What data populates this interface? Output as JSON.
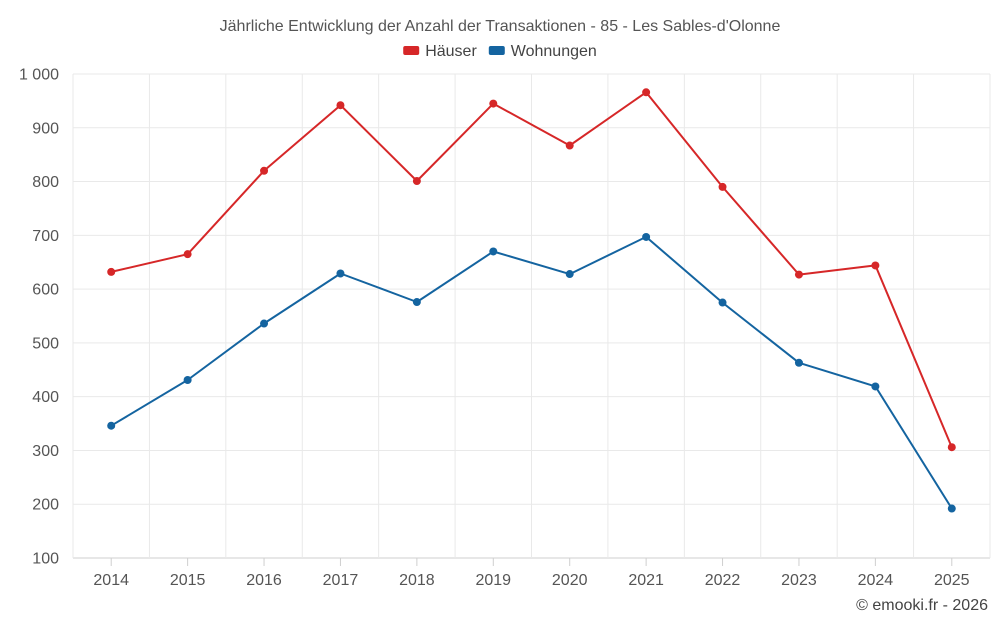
{
  "chart_data": {
    "type": "line",
    "title": "Jährliche Entwicklung der Anzahl der Transaktionen - 85 - Les Sables-d'Olonne",
    "categories": [
      "2014",
      "2015",
      "2016",
      "2017",
      "2018",
      "2019",
      "2020",
      "2021",
      "2022",
      "2023",
      "2024",
      "2025"
    ],
    "series": [
      {
        "name": "Häuser",
        "color": "#d62728",
        "values": [
          632,
          665,
          820,
          942,
          801,
          945,
          867,
          966,
          790,
          627,
          644,
          306
        ]
      },
      {
        "name": "Wohnungen",
        "color": "#1464a0",
        "values": [
          346,
          431,
          536,
          629,
          576,
          670,
          628,
          697,
          575,
          463,
          419,
          192
        ]
      }
    ],
    "y_ticks": [
      100,
      200,
      300,
      400,
      500,
      600,
      700,
      800,
      900,
      1000
    ],
    "y_tick_labels": [
      "100",
      "200",
      "300",
      "400",
      "500",
      "600",
      "700",
      "800",
      "900",
      "1 000"
    ],
    "ylim": [
      100,
      1000
    ],
    "xlabel": "",
    "ylabel": "",
    "legend_position": "top-center",
    "grid": true
  },
  "credit": "© emooki.fr - 2026"
}
